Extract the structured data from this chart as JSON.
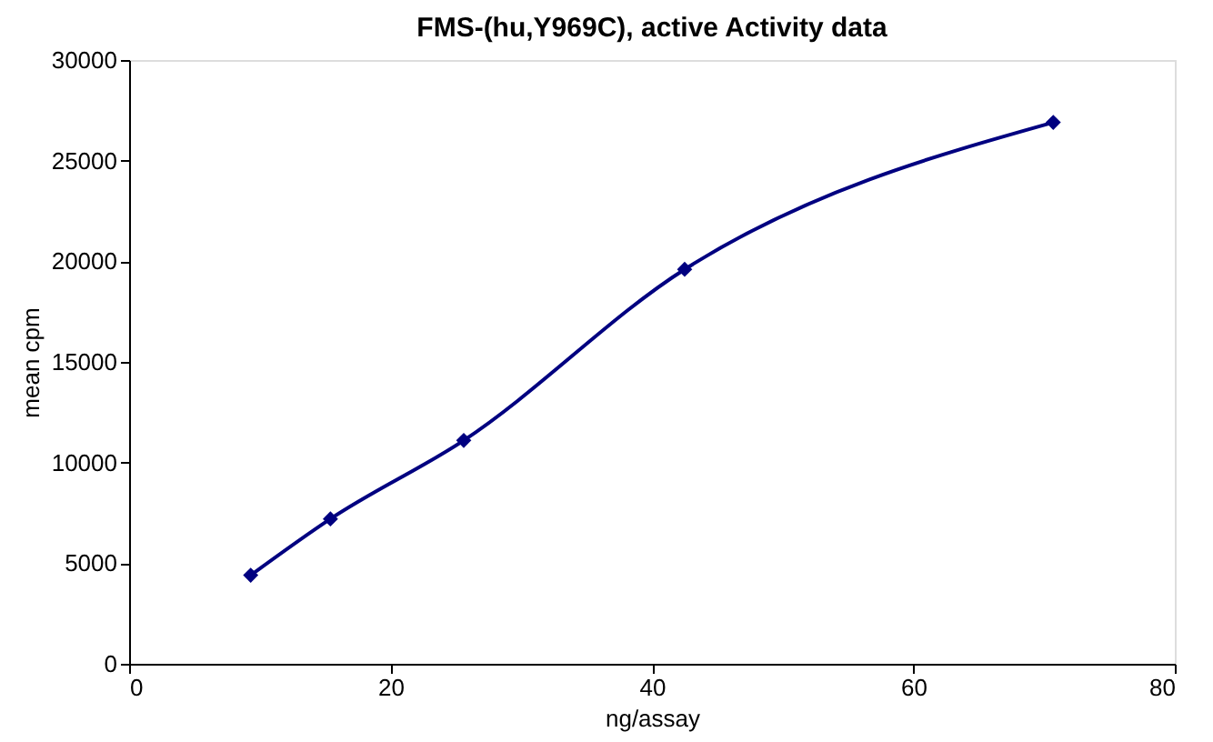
{
  "chart_data": {
    "type": "line",
    "title": "FMS-(hu,Y969C), active Activity data",
    "xlabel": "ng/assay",
    "ylabel": "mean cpm",
    "x": [
      9.3,
      15.4,
      25.6,
      42.5,
      70.7
    ],
    "series": [
      {
        "color": "#000080",
        "values": [
          4400,
          7200,
          11100,
          19600,
          26900
        ]
      }
    ],
    "xlim": [
      0,
      80
    ],
    "xticks": [
      0,
      20,
      40,
      60,
      80
    ],
    "ylim": [
      0,
      30000
    ],
    "yticks": [
      0,
      5000,
      10000,
      15000,
      20000,
      25000,
      30000
    ],
    "grid": false,
    "legend": false,
    "marker": "diamond",
    "line_style": "solid"
  }
}
